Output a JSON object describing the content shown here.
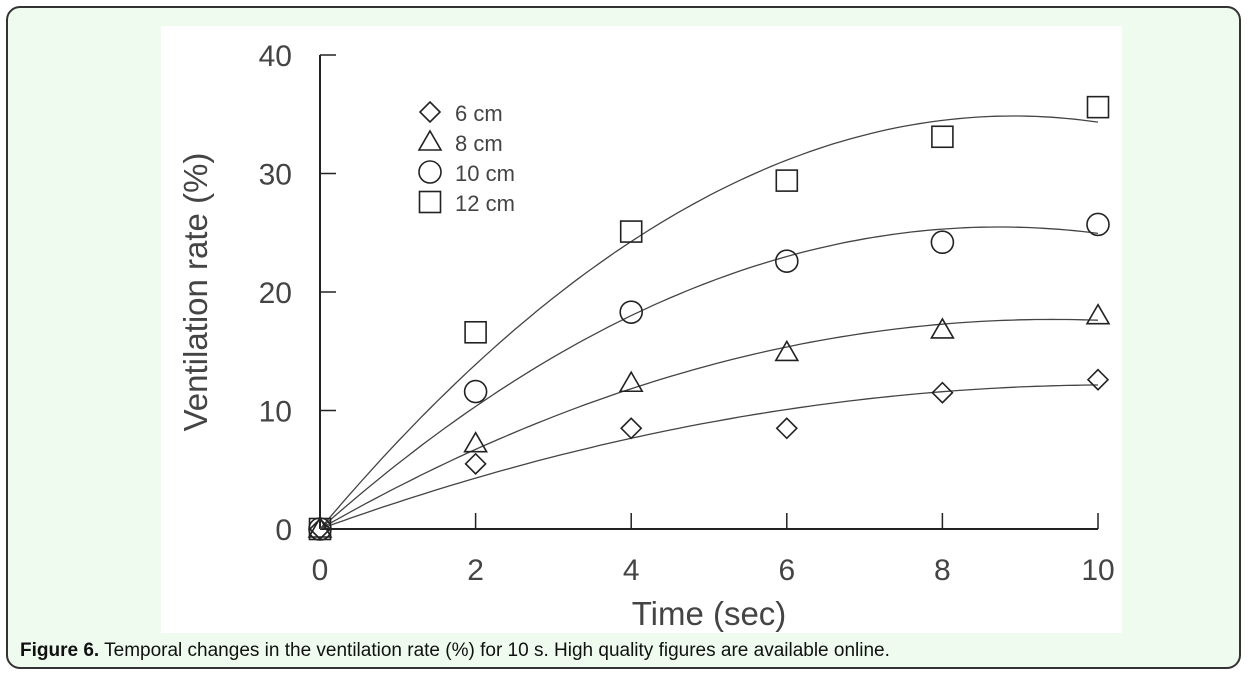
{
  "caption": {
    "label": "Figure 6.",
    "text": " Temporal changes in the ventilation rate (%) for 10 s. High quality figures are available online."
  },
  "colors": {
    "frame_background": "#eefbee",
    "frame_border": "#333333",
    "ink": "#222222",
    "text": "#444444"
  },
  "chart_data": {
    "type": "scatter",
    "title": "",
    "xlabel": "Time (sec)",
    "ylabel": "Ventilation rate (%)",
    "xlim": [
      0,
      10
    ],
    "ylim": [
      0,
      40
    ],
    "xticks": [
      0,
      2,
      4,
      6,
      8,
      10
    ],
    "yticks": [
      0,
      10,
      20,
      30,
      40
    ],
    "x": [
      0,
      2,
      4,
      6,
      8,
      10
    ],
    "grid": false,
    "legend_position": "top-left",
    "series": [
      {
        "name": "6 cm",
        "marker": "diamond",
        "values": [
          0,
          5.5,
          8.5,
          8.5,
          11.5,
          12.6
        ]
      },
      {
        "name": "8 cm",
        "marker": "triangle",
        "values": [
          0,
          7.2,
          12.3,
          14.9,
          16.8,
          18.0
        ]
      },
      {
        "name": "10 cm",
        "marker": "circle",
        "values": [
          0,
          11.6,
          18.3,
          22.6,
          24.2,
          25.7
        ]
      },
      {
        "name": "12 cm",
        "marker": "square",
        "values": [
          0,
          16.6,
          25.1,
          29.4,
          33.1,
          35.6
        ]
      }
    ]
  }
}
